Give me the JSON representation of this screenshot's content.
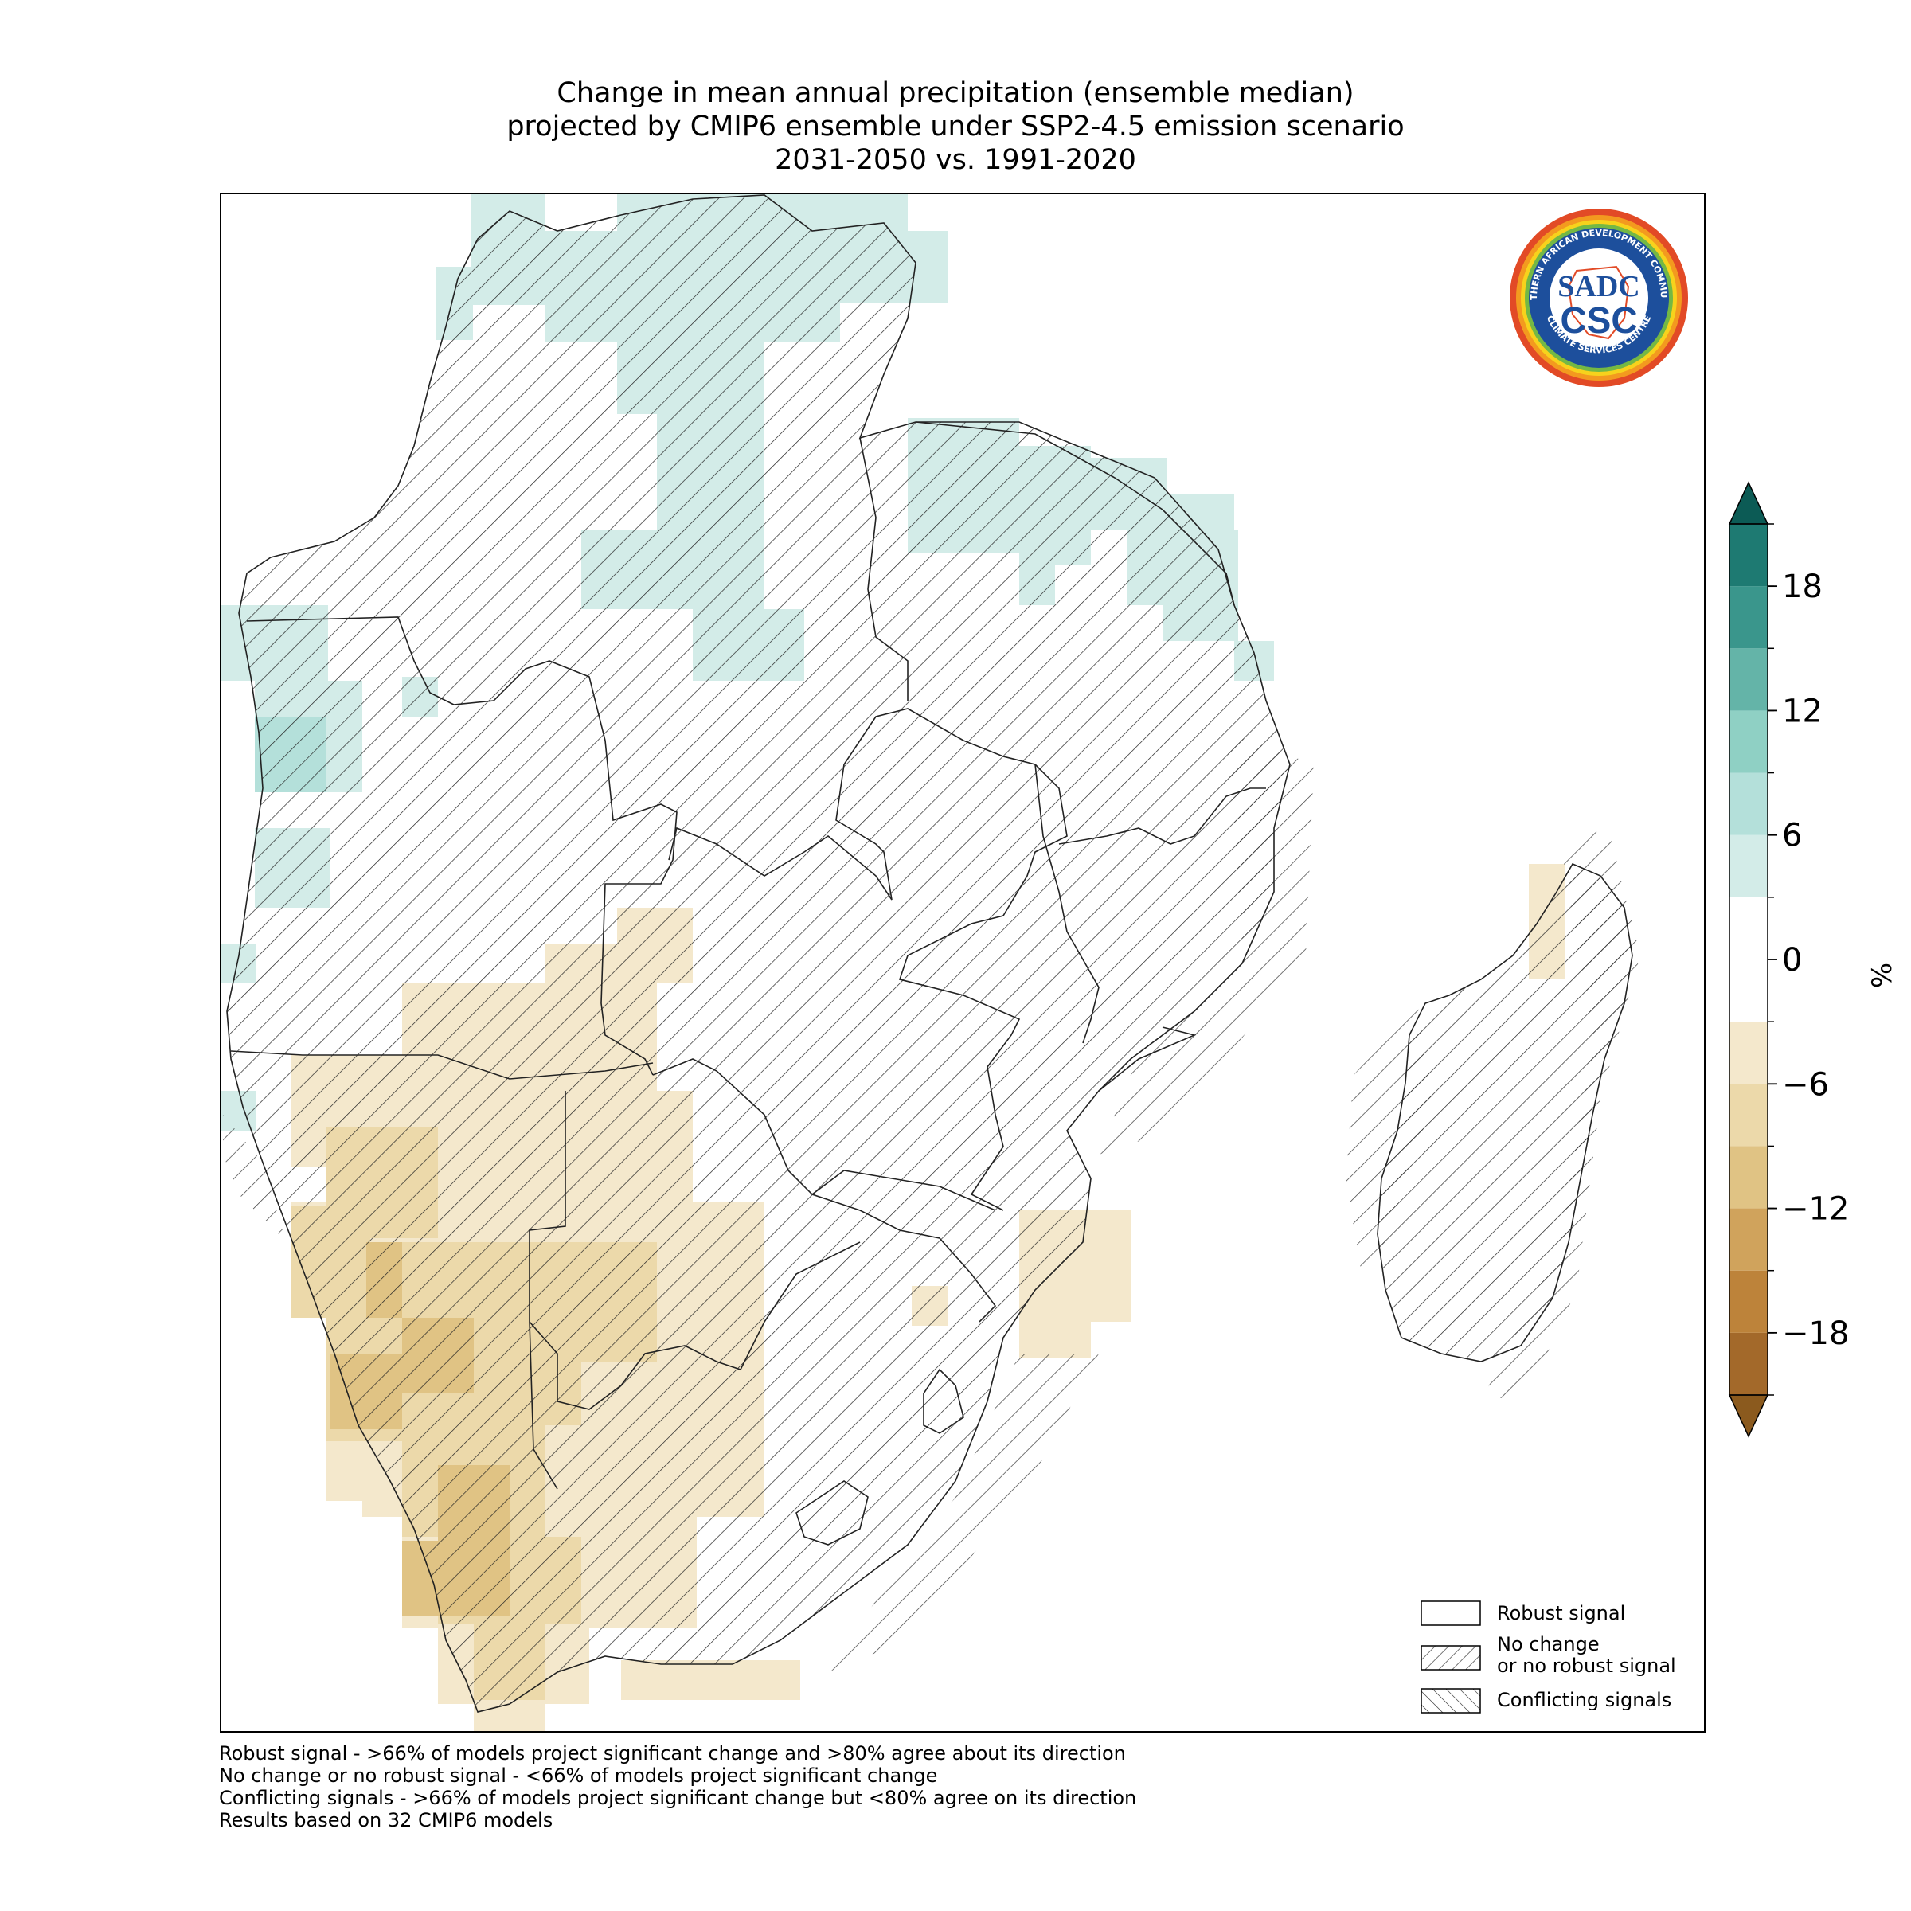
{
  "title": {
    "line1": "Change in mean annual precipitation (ensemble median)",
    "line2": "projected by CMIP6 ensemble under SSP2-4.5 emission scenario",
    "line3": "2031-2050 vs. 1991-2020"
  },
  "logo": {
    "text_top": "SOUTHERN AFRICAN DEVELOPMENT COMMUNITY",
    "text_bottom": "CLIMATE SERVICES CENTRE",
    "mark": "SADC",
    "sub": "CSC"
  },
  "legend": {
    "items": [
      {
        "label": "Robust signal",
        "pattern": "none"
      },
      {
        "label_line1": "No change",
        "label_line2": "or no robust signal",
        "pattern": "forward-hatch"
      },
      {
        "label": "Conflicting signals",
        "pattern": "back-hatch"
      }
    ]
  },
  "colorbar": {
    "unit": "%",
    "ticks": [
      "18",
      "12",
      "6",
      "0",
      "−6",
      "−12",
      "−18"
    ],
    "levels": [
      -21,
      -18,
      -15,
      -12,
      -9,
      -6,
      -3,
      3,
      6,
      9,
      12,
      15,
      18,
      21
    ],
    "colors": {
      "extend_max": "#0c5b55",
      "18_21": "#1e7a72",
      "15_18": "#3a968c",
      "12_15": "#64b4a8",
      "9_12": "#8fd0c4",
      "6_9": "#b4e0da",
      "3_6": "#d3ece8",
      "-3_3": "#ffffff",
      "-6_-3": "#f4e8cc",
      "-9_-6": "#ecd9aa",
      "-12_-9": "#e0c384",
      "-15_-12": "#d0a35c",
      "-18_-15": "#bd833a",
      "-21_-18": "#a3692a",
      "extend_min": "#8b5a1e"
    }
  },
  "footnotes": {
    "line1": "Robust signal - >66% of models project significant change and >80% agree about its direction",
    "line2": "No change or no robust signal - <66% of models project significant change",
    "line3": "Conflicting signals - >66% of models project significant change but <80% agree on its direction",
    "line4": "Results based on 32 CMIP6 models"
  }
}
